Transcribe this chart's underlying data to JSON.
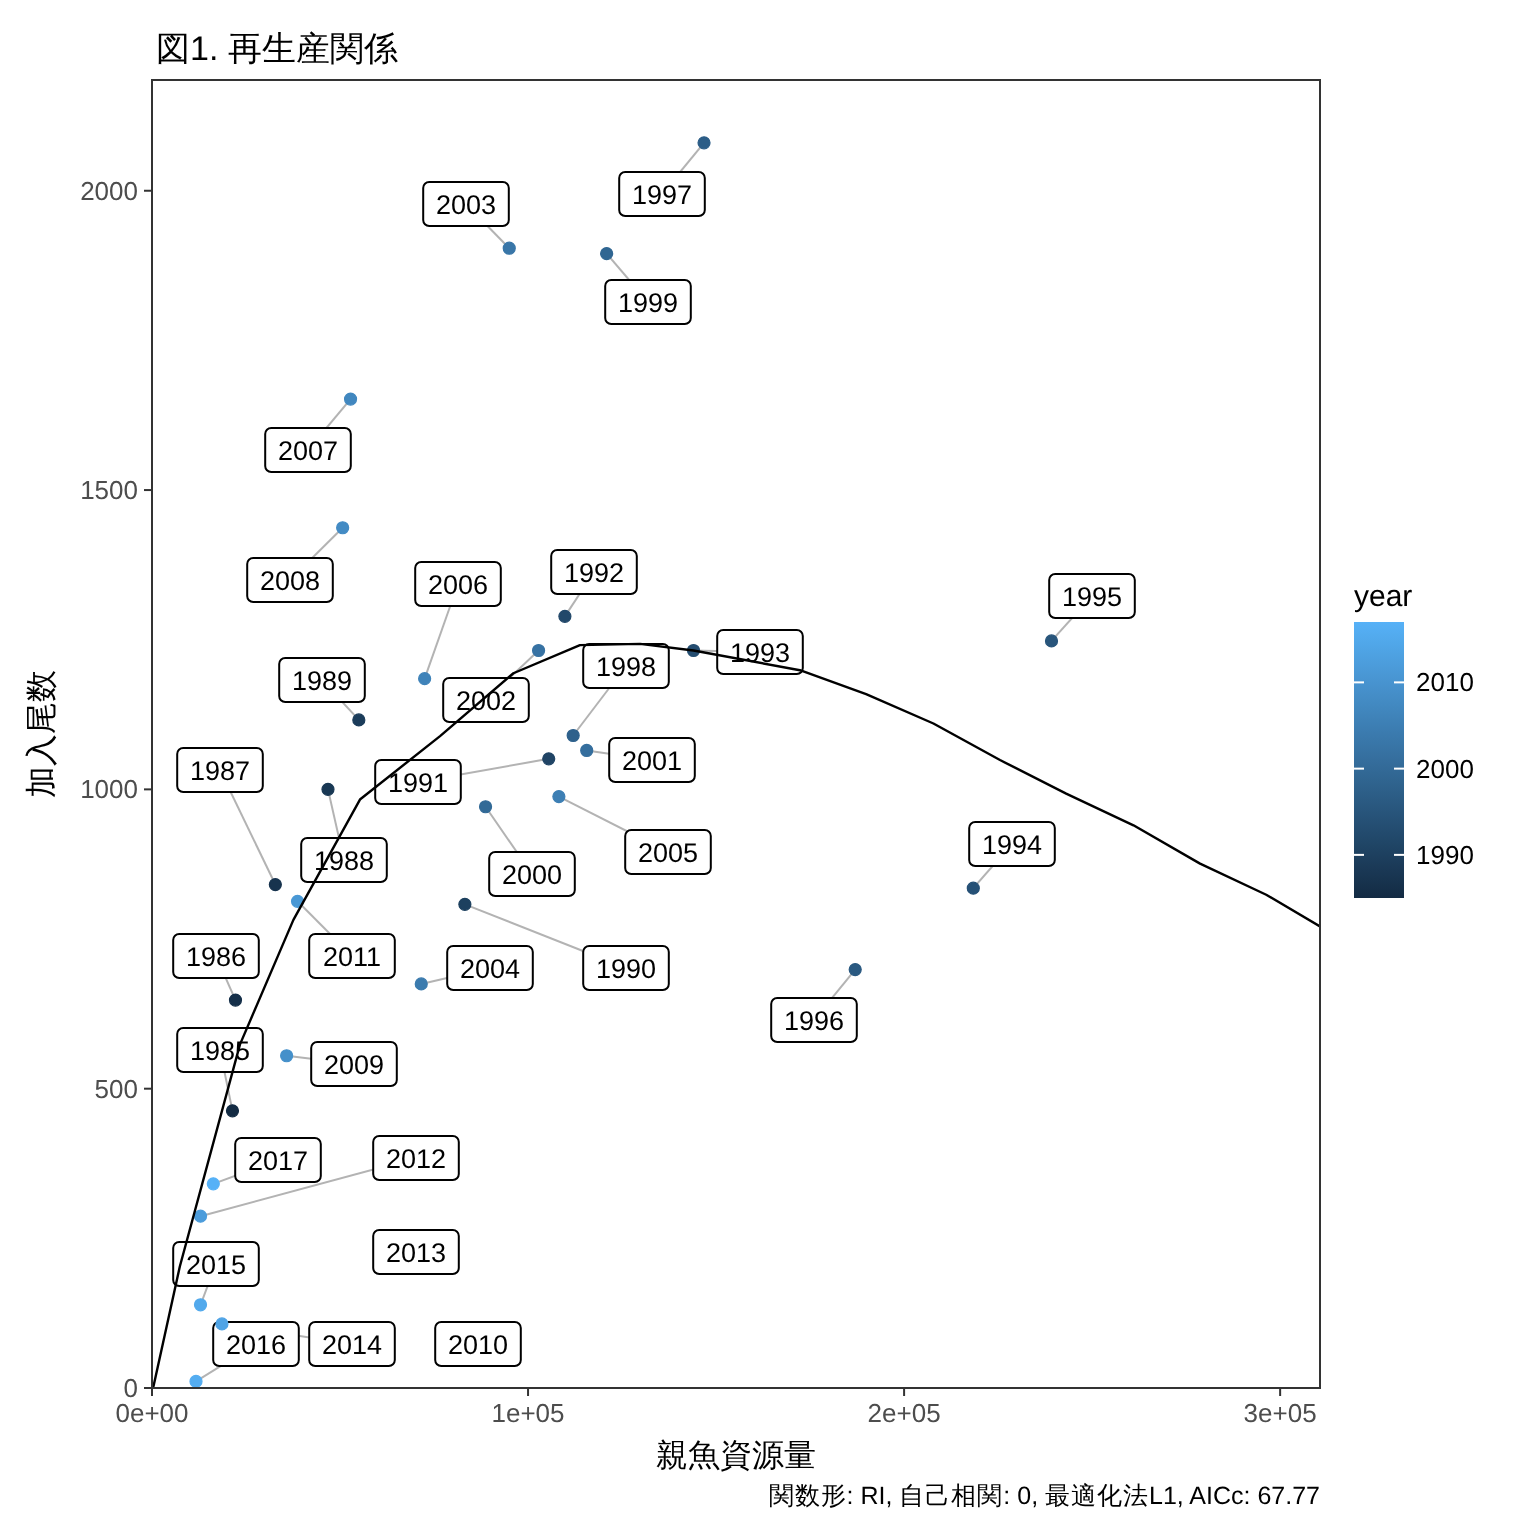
{
  "chart_data": {
    "type": "scatter",
    "title": "図1. 再生産関係",
    "xlabel": "親魚資源量",
    "ylabel": "加入尾数",
    "clabel": "year",
    "xlim": [
      0,
      310600
    ],
    "ylim": [
      0,
      2185
    ],
    "xticks": [
      {
        "value": 0,
        "label": "0e+00"
      },
      {
        "value": 100000,
        "label": "1e+05"
      },
      {
        "value": 200000,
        "label": "2e+05"
      },
      {
        "value": 300000,
        "label": "3e+05"
      }
    ],
    "yticks": [
      0,
      500,
      1000,
      1500,
      2000
    ],
    "clim": [
      1985,
      2017
    ],
    "cticks": [
      1990,
      2000,
      2010
    ],
    "grid": false,
    "marker": "circle",
    "series": [
      {
        "type": "scatter",
        "x": [
          21400,
          22200,
          32800,
          46800,
          55000,
          83200,
          105500,
          109800,
          144000,
          218400,
          239200,
          187000,
          146800,
          112000,
          120900,
          88700,
          115600,
          102800,
          95000,
          71600,
          108200,
          72500,
          52800,
          50700,
          35800,
          38700,
          12900,
          18600,
          12900,
          11700,
          16300
        ],
        "values": [
          463,
          648,
          841,
          1000,
          1116,
          808,
          1051,
          1289,
          1232,
          835,
          1248,
          699,
          2080,
          1090,
          1895,
          971,
          1065,
          1232,
          1904,
          675,
          988,
          1185,
          1652,
          1437,
          555,
          813,
          287,
          107,
          139,
          11,
          341
        ],
        "cvalues": [
          1985,
          1986,
          1987,
          1988,
          1989,
          1990,
          1991,
          1992,
          1993,
          1994,
          1995,
          1996,
          1997,
          1998,
          1999,
          2000,
          2001,
          2002,
          2003,
          2004,
          2005,
          2006,
          2007,
          2008,
          2009,
          2011,
          2012,
          2014,
          2015,
          2016,
          2017
        ],
        "colors": [
          "#132b43",
          "#152f49",
          "#17334e",
          "#193854",
          "#1b3c5a",
          "#1d405f",
          "#204465",
          "#22486a",
          "#244d70",
          "#265176",
          "#28557b",
          "#2a5981",
          "#2c5d87",
          "#2e618c",
          "#306692",
          "#326a97",
          "#356e9d",
          "#3772a3",
          "#3976a8",
          "#3b7bae",
          "#3d7fb4",
          "#3f83b9",
          "#4187bf",
          "#438bc4",
          "#4590ca",
          "#4998d5",
          "#4c9cdb",
          "#50a4e6",
          "#52a9ec",
          "#54adf1",
          "#56b1f7"
        ]
      },
      {
        "type": "line",
        "color": "#000000",
        "line_style": "solid",
        "marker": "none",
        "x": [
          0,
          400,
          7400,
          23400,
          37600,
          55300,
          76600,
          96100,
          113800,
          129800,
          144000,
          172300,
          189900,
          207800,
          225500,
          243100,
          261000,
          278700,
          296300,
          310600
        ],
        "values": [
          0,
          3,
          203,
          574,
          782,
          983,
          1089,
          1194,
          1241,
          1243,
          1232,
          1199,
          1159,
          1110,
          1049,
          993,
          940,
          876,
          824,
          771
        ]
      }
    ],
    "annotations": [
      {
        "text": "1985",
        "x": 21400,
        "y": 463
      },
      {
        "text": "1986",
        "x": 22200,
        "y": 648
      },
      {
        "text": "1987",
        "x": 32800,
        "y": 841
      },
      {
        "text": "1988",
        "x": 46800,
        "y": 1000
      },
      {
        "text": "1989",
        "x": 55000,
        "y": 1116
      },
      {
        "text": "1990",
        "x": 83200,
        "y": 808
      },
      {
        "text": "1991",
        "x": 105500,
        "y": 1051
      },
      {
        "text": "1992",
        "x": 109800,
        "y": 1289
      },
      {
        "text": "1993",
        "x": 144000,
        "y": 1232
      },
      {
        "text": "1994",
        "x": 218400,
        "y": 835
      },
      {
        "text": "1995",
        "x": 239200,
        "y": 1248
      },
      {
        "text": "1996",
        "x": 187000,
        "y": 699
      },
      {
        "text": "1997",
        "x": 146800,
        "y": 2080
      },
      {
        "text": "1998",
        "x": 112000,
        "y": 1090
      },
      {
        "text": "1999",
        "x": 120900,
        "y": 1895
      },
      {
        "text": "2000",
        "x": 88700,
        "y": 971
      },
      {
        "text": "2001",
        "x": 115600,
        "y": 1065
      },
      {
        "text": "2002",
        "x": 102800,
        "y": 1232
      },
      {
        "text": "2003",
        "x": 95000,
        "y": 1904
      },
      {
        "text": "2004",
        "x": 71600,
        "y": 675
      },
      {
        "text": "2005",
        "x": 108200,
        "y": 988
      },
      {
        "text": "2006",
        "x": 72500,
        "y": 1185
      },
      {
        "text": "2007",
        "x": 52800,
        "y": 1652
      },
      {
        "text": "2008",
        "x": 50700,
        "y": 1437
      },
      {
        "text": "2009",
        "x": 35800,
        "y": 555
      },
      "2010",
      {
        "text": "2011",
        "x": 38700,
        "y": 813
      },
      {
        "text": "2012",
        "x": 12900,
        "y": 287
      },
      "2013",
      {
        "text": "2014",
        "x": 18600,
        "y": 107
      },
      {
        "text": "2015",
        "x": 12900,
        "y": 139
      },
      {
        "text": "2016",
        "x": 11700,
        "y": 11
      },
      {
        "text": "2017",
        "x": 16300,
        "y": 341
      },
      "関数形: RI, 自己相関: 0, 最適化法L1, AICc: 67.77"
    ]
  }
}
